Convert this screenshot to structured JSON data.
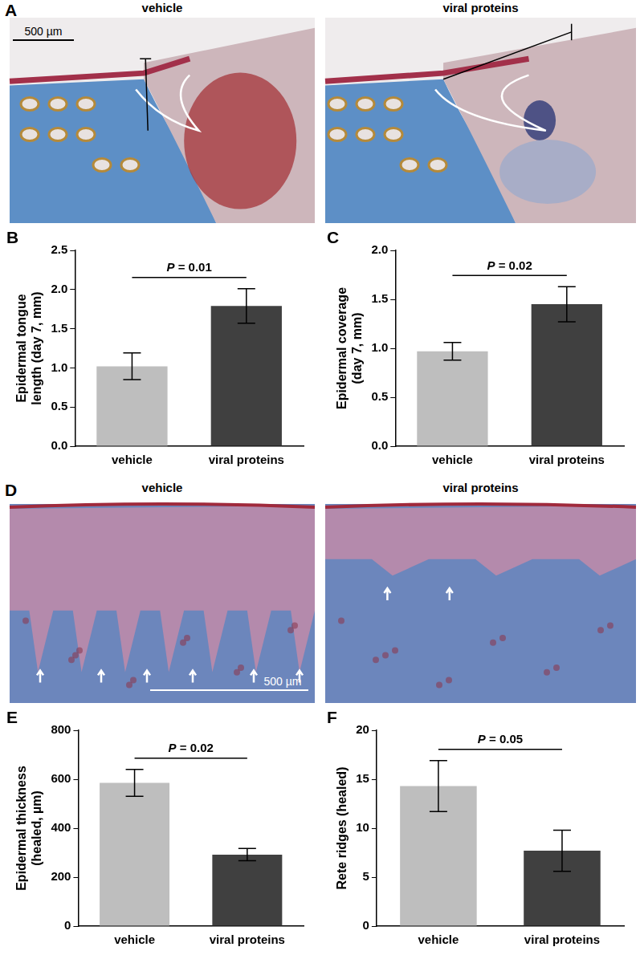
{
  "image_panels": [
    {
      "panel": "A",
      "images": [
        {
          "label": "vehicle",
          "scale_bar": "500 µm"
        },
        {
          "label": "viral proteins"
        }
      ]
    },
    {
      "panel": "D",
      "images": [
        {
          "label": "vehicle",
          "scale_bar": "500 µm"
        },
        {
          "label": "viral proteins"
        }
      ]
    }
  ],
  "chart_data": [
    {
      "panel": "B",
      "type": "bar",
      "ylabel": [
        "Epidermal tongue",
        "length (day 7, mm)"
      ],
      "categories": [
        "vehicle",
        "viral proteins"
      ],
      "values": [
        1.02,
        1.79
      ],
      "error": [
        0.17,
        0.22
      ],
      "colors": [
        "#bebebe",
        "#404040"
      ],
      "annotation": "P = 0.01",
      "ylim": [
        0,
        2.5
      ],
      "yticks": [
        {
          "value": 0,
          "label": "0.0"
        },
        0.5,
        {
          "value": 1,
          "label": "1.0"
        },
        1.5,
        {
          "value": 2,
          "label": "2.0"
        },
        2.5
      ],
      "grid": false
    },
    {
      "panel": "C",
      "type": "bar",
      "ylabel": [
        "Epidermal coverage",
        "(day 7, mm)"
      ],
      "categories": [
        "vehicle",
        "viral proteins"
      ],
      "values": [
        0.97,
        1.45
      ],
      "error": [
        0.09,
        0.18
      ],
      "colors": [
        "#bebebe",
        "#404040"
      ],
      "annotation": "P = 0.02",
      "ylim": [
        0,
        2.0
      ],
      "yticks": [
        {
          "value": 0,
          "label": "0.0"
        },
        0.5,
        {
          "value": 1,
          "label": "1.0"
        },
        1.5,
        {
          "value": 2,
          "label": "2.0"
        }
      ],
      "grid": false
    },
    {
      "panel": "E",
      "type": "bar",
      "ylabel": [
        "Epidermal thickness",
        "(healed, µm)"
      ],
      "categories": [
        "vehicle",
        "viral proteins"
      ],
      "values": [
        585,
        292
      ],
      "error": [
        55,
        25
      ],
      "colors": [
        "#bebebe",
        "#404040"
      ],
      "annotation": "P = 0.02",
      "ylim": [
        0,
        800
      ],
      "yticks": [
        0,
        200,
        400,
        600,
        800
      ],
      "grid": false
    },
    {
      "panel": "F",
      "type": "bar",
      "ylabel": [
        "Rete ridges (healed)"
      ],
      "categories": [
        "vehicle",
        "viral proteins"
      ],
      "values": [
        14.3,
        7.7
      ],
      "error": [
        2.6,
        2.1
      ],
      "colors": [
        "#bebebe",
        "#404040"
      ],
      "annotation": "P = 0.05",
      "ylim": [
        0,
        20
      ],
      "yticks": [
        0,
        5,
        10,
        15,
        20
      ],
      "grid": false
    }
  ]
}
